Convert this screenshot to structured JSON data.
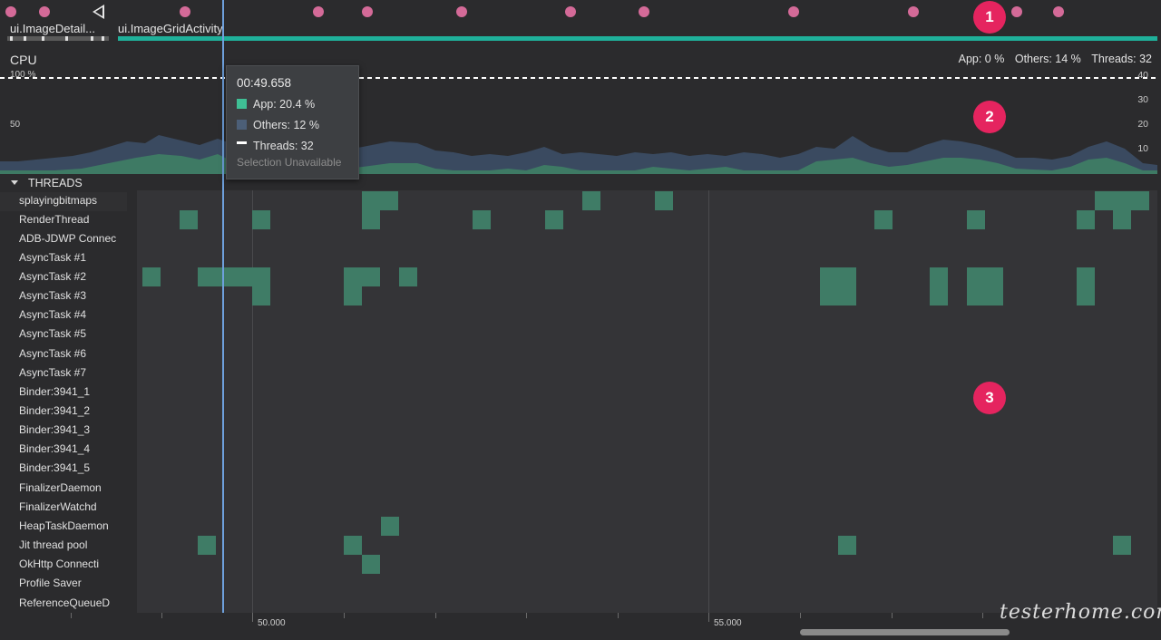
{
  "events": {
    "activities": [
      "ui.ImageDetail...",
      "ui.ImageGridActivity"
    ]
  },
  "cpu": {
    "title": "CPU",
    "app_label": "App: 0 %",
    "others_label": "Others: 14 %",
    "threads_label": "Threads: 32",
    "left_axis": [
      "100 %",
      "50"
    ],
    "right_axis": [
      "40",
      "30",
      "20",
      "10"
    ]
  },
  "tooltip": {
    "time": "00:49.658",
    "app": "App: 20.4 %",
    "others": "Others: 12 %",
    "threads": "Threads: 32",
    "note": "Selection Unavailable",
    "app_color": "#3fbf95",
    "others_color": "#4c5f78"
  },
  "threads_section": {
    "title": "THREADS",
    "names": [
      "splayingbitmaps",
      "RenderThread",
      "ADB-JDWP Connec",
      "AsyncTask #1",
      "AsyncTask #2",
      "AsyncTask #3",
      "AsyncTask #4",
      "AsyncTask #5",
      "AsyncTask #6",
      "AsyncTask #7",
      "Binder:3941_1",
      "Binder:3941_2",
      "Binder:3941_3",
      "Binder:3941_4",
      "Binder:3941_5",
      "FinalizerDaemon",
      "FinalizerWatchd",
      "HeapTaskDaemon",
      "Jit thread pool",
      "OkHttp Connecti",
      "Profile Saver",
      "ReferenceQueueD"
    ]
  },
  "timeline": {
    "labels": [
      "50.000",
      "55.000"
    ]
  },
  "callouts": [
    "1",
    "2",
    "3"
  ],
  "watermark": "testerhome.com"
}
